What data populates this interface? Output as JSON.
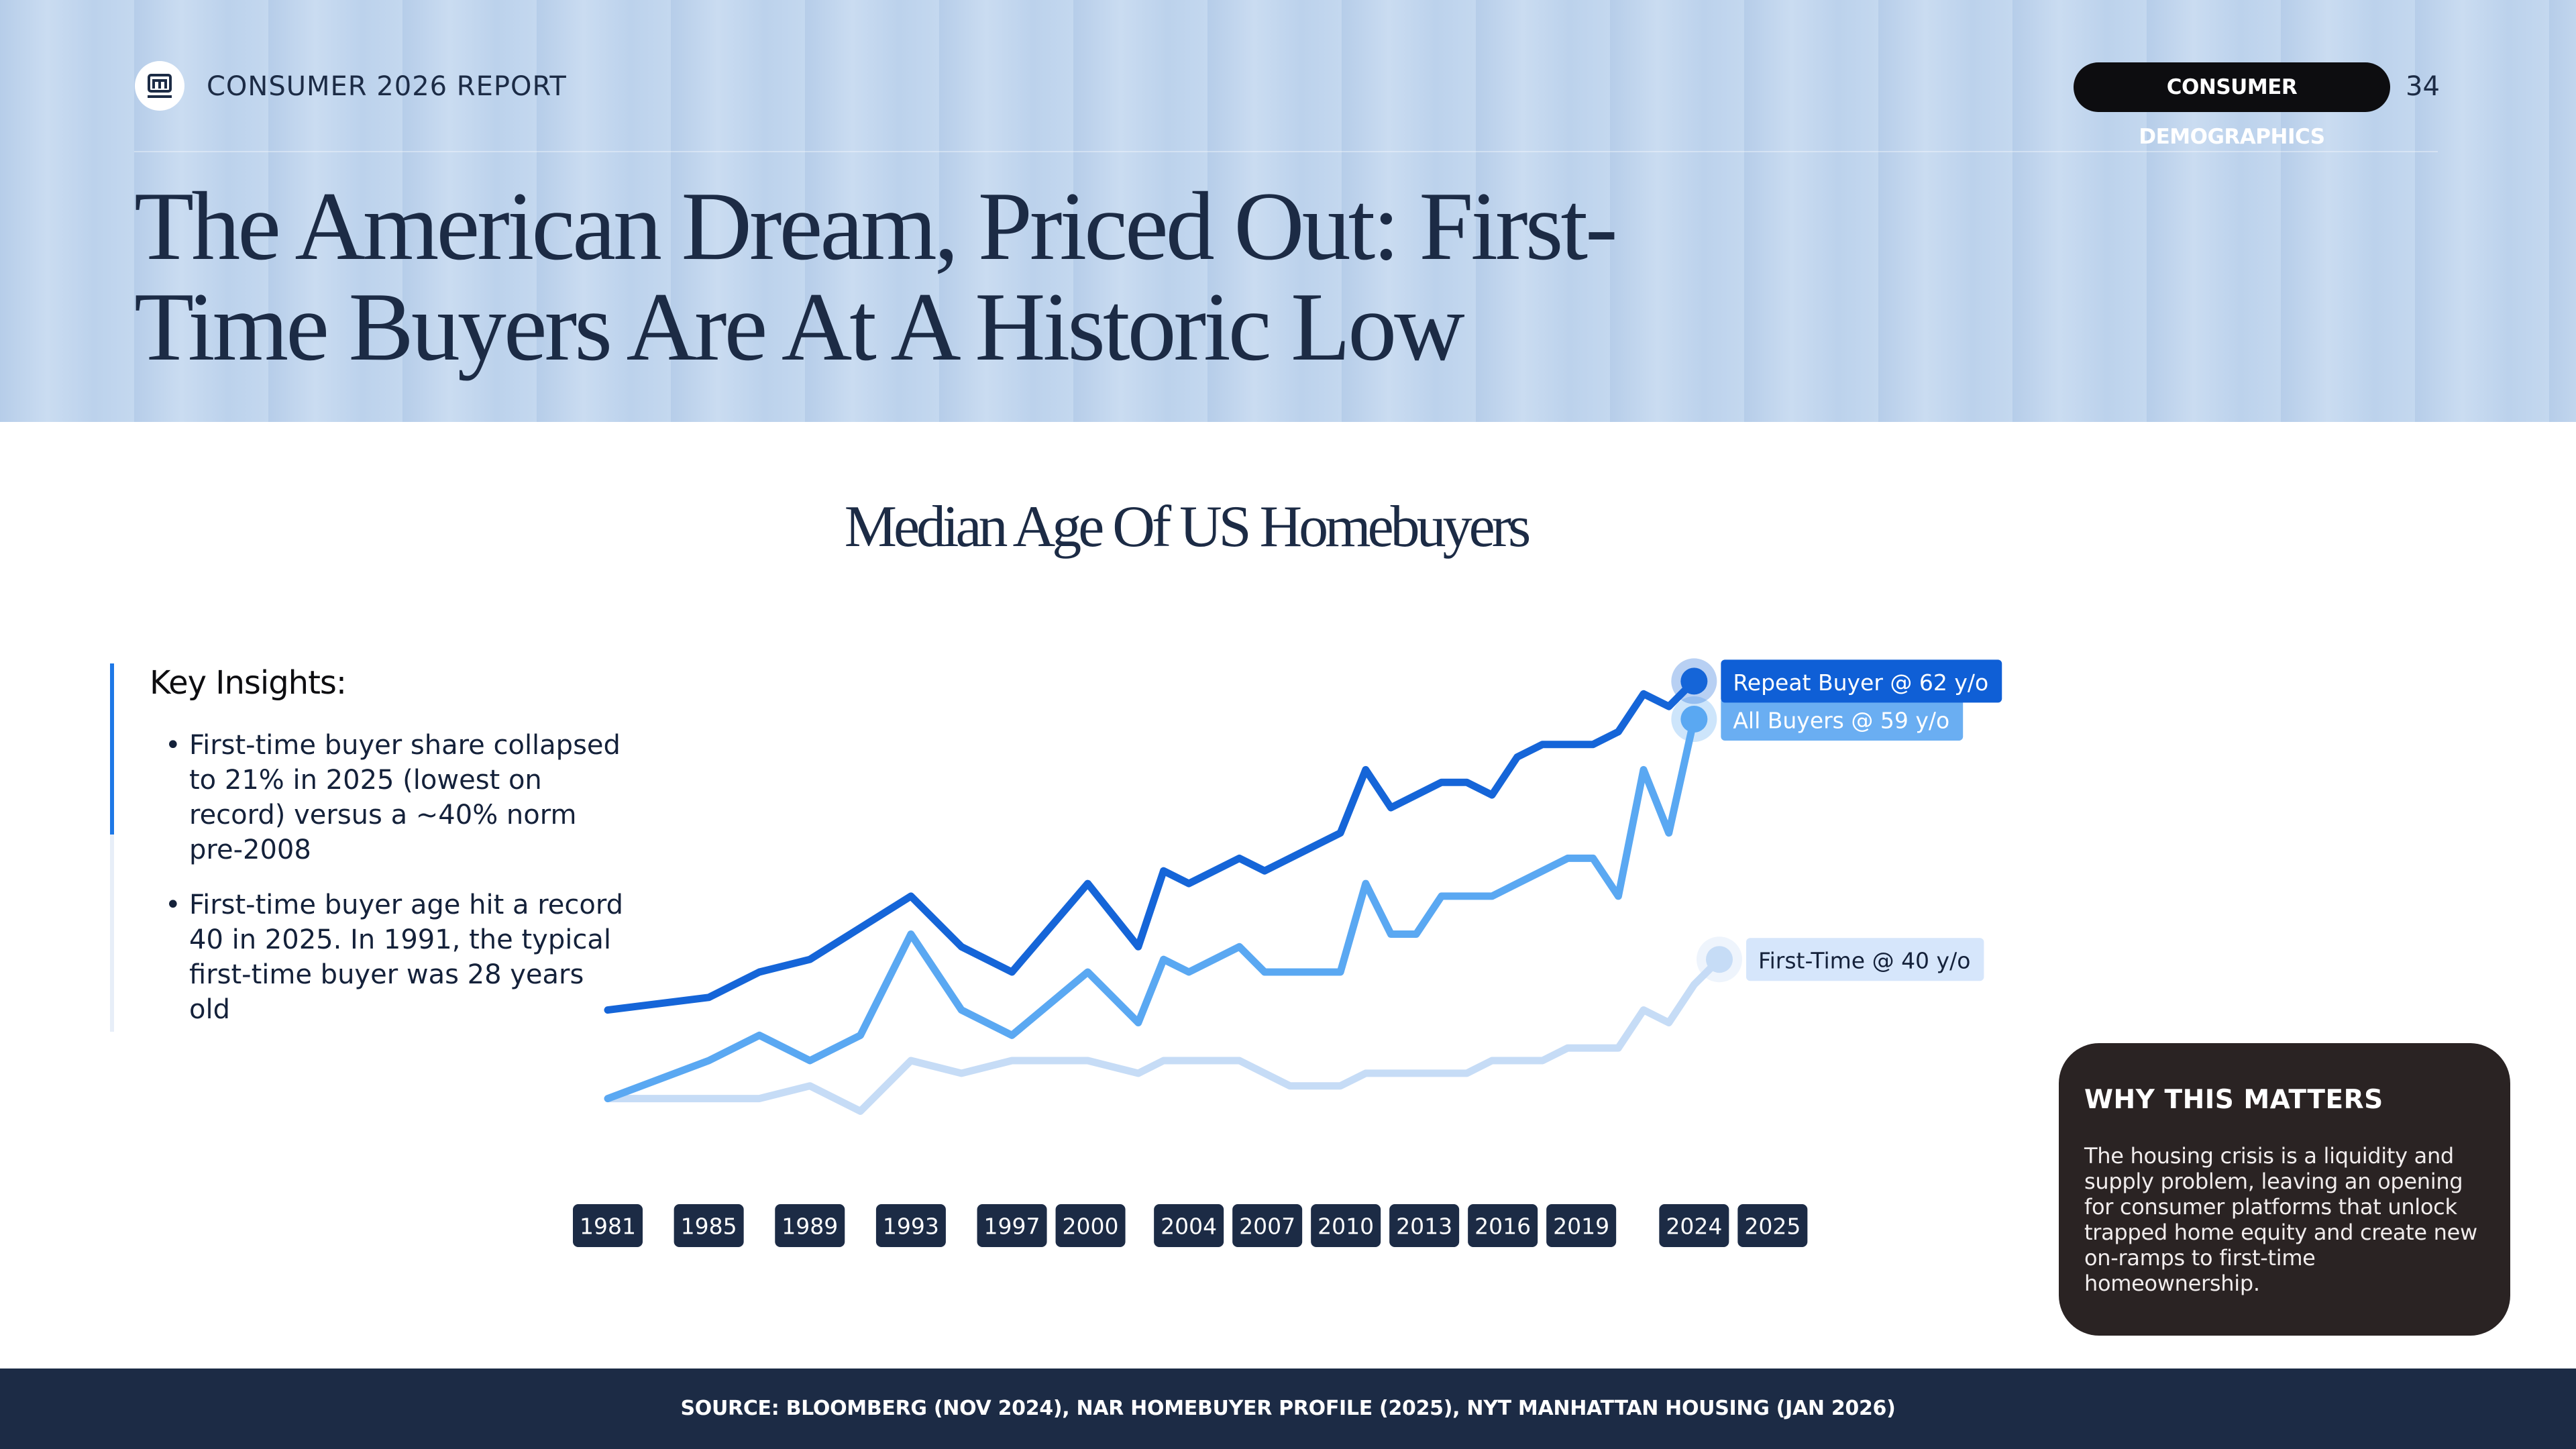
{
  "header": {
    "report_label": "CONSUMER 2026 REPORT",
    "section_tag": "CONSUMER DEMOGRAPHICS",
    "page_number": "34",
    "title": "The American Dream, Priced Out: First-Time Buyers Are At A Historic Low"
  },
  "insights": {
    "heading": "Key Insights:",
    "bullets": [
      "First-time buyer share collapsed to 21% in 2025 (lowest on record) versus a ~40% norm pre-2008",
      "First-time buyer age hit a record 40 in 2025. In 1991, the typical first-time buyer was 28 years old"
    ]
  },
  "callout": {
    "heading": "WHY THIS MATTERS",
    "body": "The housing crisis is a liquidity and supply problem, leaving an opening for consumer platforms that unlock trapped home equity and create new on-ramps to first-time homeownership."
  },
  "footer": {
    "source": "SOURCE: BLOOMBERG (NOV 2024), NAR HOMEBUYER PROFILE (2025), NYT MANHATTAN HOUSING (JAN 2026)"
  },
  "chart_data": {
    "type": "line",
    "title": "Median Age Of US Homebuyers",
    "xlim": [
      1981,
      2025
    ],
    "ylim": [
      25,
      66
    ],
    "xticks": [
      1981,
      1985,
      1989,
      1993,
      1997,
      2000,
      2004,
      2007,
      2010,
      2013,
      2016,
      2019,
      2024,
      2025
    ],
    "series": [
      {
        "label": "Repeat Buyer @ 62 y/o",
        "color": "#1565d8",
        "label_color": "#0f5fd6",
        "label_text_color": "#ffffff",
        "x": [
          1981,
          1985,
          1987,
          1989,
          1993,
          1995,
          1997,
          2000,
          2002,
          2003,
          2004,
          2006,
          2007,
          2010,
          2011,
          2012,
          2014,
          2015,
          2016,
          2017,
          2018,
          2020,
          2021,
          2022,
          2023,
          2024
        ],
        "values": [
          36,
          37,
          39,
          40,
          45,
          41,
          39,
          46,
          41,
          47,
          46,
          48,
          47,
          50,
          55,
          52,
          54,
          54,
          53,
          56,
          57,
          57,
          58,
          61,
          60,
          62
        ]
      },
      {
        "label": "All Buyers @ 59 y/o",
        "color": "#5aa8f2",
        "label_color": "#6aaef2",
        "label_text_color": "#ffffff",
        "x": [
          1981,
          1985,
          1987,
          1989,
          1991,
          1993,
          1995,
          1997,
          2000,
          2002,
          2003,
          2004,
          2006,
          2007,
          2010,
          2011,
          2012,
          2013,
          2014,
          2016,
          2017,
          2019,
          2020,
          2021,
          2022,
          2023,
          2024
        ],
        "values": [
          29,
          32,
          34,
          32,
          34,
          42,
          36,
          34,
          39,
          35,
          40,
          39,
          41,
          39,
          39,
          46,
          42,
          42,
          45,
          45,
          46,
          48,
          48,
          45,
          55,
          50,
          59
        ]
      },
      {
        "label": "First-Time @ 40 y/o",
        "color": "#c6dcf6",
        "label_color": "#d6e6fb",
        "label_text_color": "#14213a",
        "x": [
          1981,
          1987,
          1989,
          1991,
          1993,
          1995,
          1997,
          2000,
          2002,
          2003,
          2006,
          2008,
          2010,
          2011,
          2015,
          2016,
          2018,
          2019,
          2021,
          2022,
          2023,
          2024,
          2025
        ],
        "values": [
          29,
          29,
          30,
          28,
          32,
          31,
          32,
          32,
          31,
          32,
          32,
          30,
          30,
          31,
          31,
          32,
          32,
          33,
          33,
          36,
          35,
          38,
          40
        ]
      }
    ]
  }
}
